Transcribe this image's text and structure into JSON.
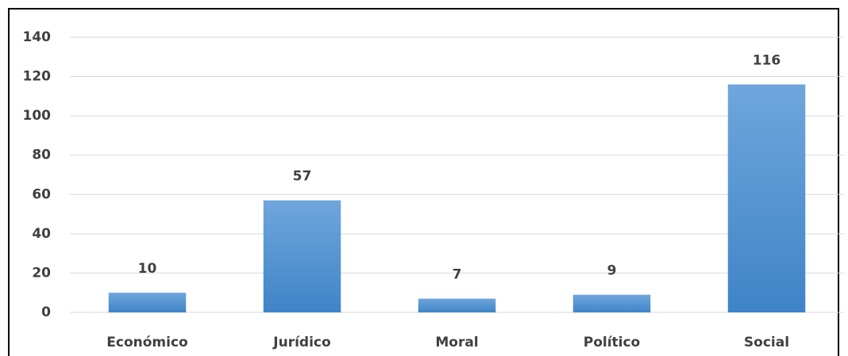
{
  "chart_data": {
    "type": "bar",
    "categories": [
      "Económico",
      "Jurídico",
      "Moral",
      "Político",
      "Social"
    ],
    "values": [
      10,
      57,
      7,
      9,
      116
    ],
    "color": "#5b9bd5",
    "ylim": [
      0,
      140
    ],
    "yticks": [
      0,
      20,
      40,
      60,
      80,
      100,
      120,
      140
    ],
    "grid": true
  }
}
